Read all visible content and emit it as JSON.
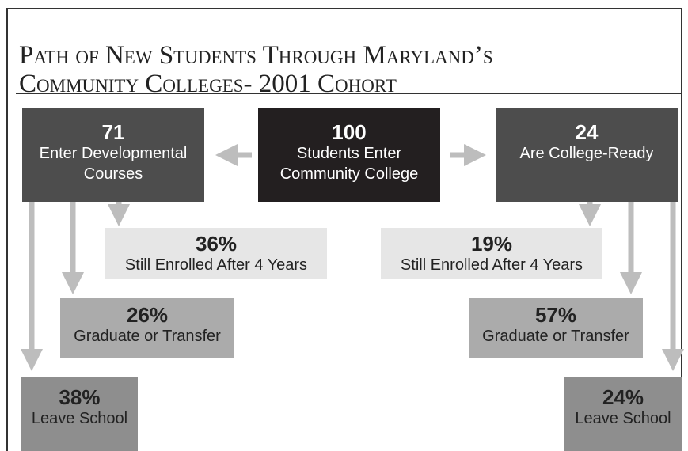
{
  "title": {
    "line1": "Path of New Students Through Maryland’s",
    "line2": "Community Colleges- 2001 Cohort"
  },
  "nodes": [
    {
      "value": "71",
      "label": "Enter Developmental Courses"
    },
    {
      "value": "100",
      "label": "Students Enter Community College"
    },
    {
      "value": "24",
      "label": "Are College-Ready"
    },
    {
      "value": "36%",
      "label": "Still Enrolled After 4 Years"
    },
    {
      "value": "19%",
      "label": "Still Enrolled After 4 Years"
    },
    {
      "value": "26%",
      "label": "Graduate or Transfer"
    },
    {
      "value": "57%",
      "label": "Graduate or Transfer"
    },
    {
      "value": "38%",
      "label": "Leave School"
    },
    {
      "value": "24%",
      "label": "Leave School"
    }
  ]
}
